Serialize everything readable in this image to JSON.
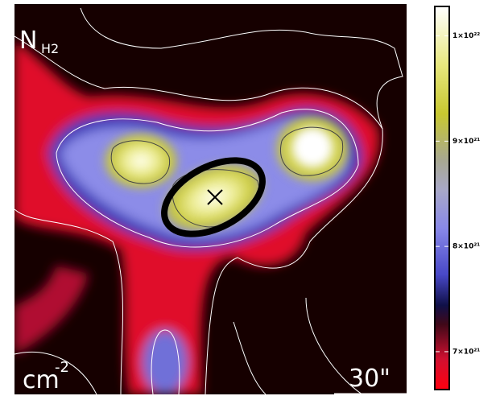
{
  "chart_data": {
    "type": "heatmap",
    "label": "N",
    "label_sub": "H2",
    "unit": "cm",
    "unit_exp": "-2",
    "scale_bar": "30\"",
    "zlim": [
      6.64e+21,
      1.028e+22
    ],
    "zticks": [
      {
        "value": 1e+22,
        "label": "1×10²²"
      },
      {
        "value": 9e+21,
        "label": "9×10²¹"
      },
      {
        "value": 8e+21,
        "label": "8×10²¹"
      },
      {
        "value": 7e+21,
        "label": "7×10²¹"
      }
    ]
  }
}
